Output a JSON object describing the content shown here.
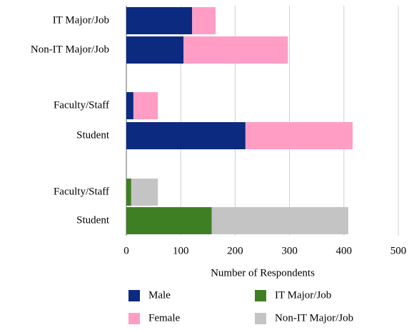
{
  "chart_data": {
    "type": "stacked-barh",
    "categories": [
      "IT Major/Job",
      "Non-IT Major/Job",
      "Faculty/Staff",
      "Student",
      "Faculty/Staff",
      "Student"
    ],
    "series": [
      {
        "name": "Male",
        "color": "#0b2a80",
        "values": [
          121,
          105,
          13,
          219,
          null,
          null
        ]
      },
      {
        "name": "Female",
        "color": "#ff9dc5",
        "values": [
          43,
          192,
          45,
          197,
          null,
          null
        ]
      },
      {
        "name": "IT Major/Job",
        "color": "#3f7f24",
        "values": [
          null,
          null,
          null,
          null,
          9,
          157
        ]
      },
      {
        "name": "Non-IT Major/Job",
        "color": "#c4c4c4",
        "values": [
          null,
          null,
          null,
          null,
          49,
          251
        ]
      }
    ],
    "xlabel": "Number of Respondents",
    "xlim": [
      0,
      500
    ],
    "xticks": [
      0,
      100,
      200,
      300,
      400,
      500
    ],
    "grid": true,
    "legend": "bottom"
  }
}
